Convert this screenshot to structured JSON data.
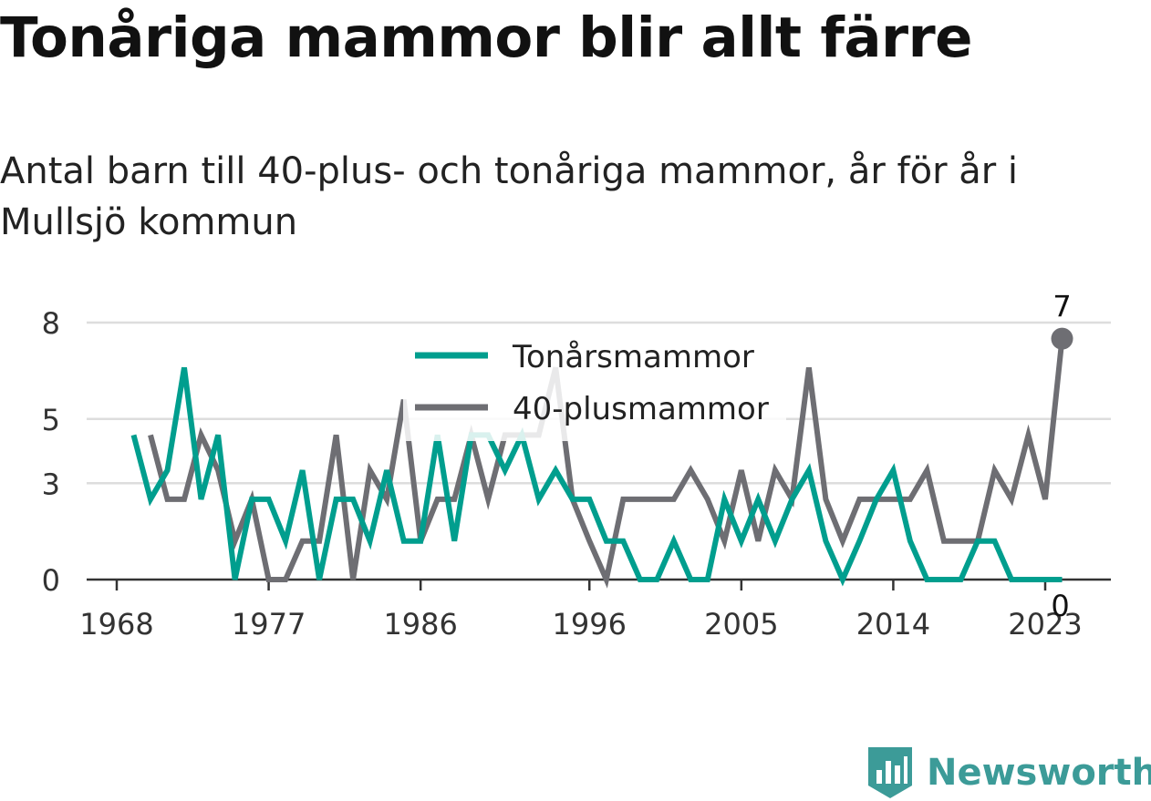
{
  "chart_data": {
    "type": "line",
    "title": "Tonåriga mammor blir allt färre",
    "subtitle": "Antal barn till 40-plus- och tonåriga mammor, år för år i Mullsjö kommun",
    "x_ticks": [
      "1968",
      "1977",
      "1986",
      "1996",
      "2005",
      "2014",
      "2023"
    ],
    "y_ticks": [
      "0",
      "3",
      "5",
      "8"
    ],
    "ylim": [
      0,
      8
    ],
    "grid": true,
    "legend": "top-center",
    "x": [
      1969,
      1970,
      1971,
      1972,
      1973,
      1974,
      1975,
      1976,
      1977,
      1978,
      1979,
      1980,
      1981,
      1982,
      1983,
      1984,
      1985,
      1986,
      1987,
      1988,
      1989,
      1990,
      1991,
      1992,
      1993,
      1994,
      1995,
      1996,
      1997,
      1998,
      1999,
      2000,
      2001,
      2002,
      2003,
      2004,
      2005,
      2006,
      2007,
      2008,
      2009,
      2010,
      2011,
      2012,
      2013,
      2014,
      2015,
      2016,
      2017,
      2018,
      2019,
      2020,
      2021,
      2022,
      2023,
      2024
    ],
    "series": [
      {
        "name": "Tonårsmammor",
        "color": "#009e8e",
        "values": [
          4.5,
          2.5,
          3.4,
          6.6,
          2.5,
          4.5,
          0,
          2.5,
          2.5,
          1.2,
          3.4,
          0,
          2.5,
          2.5,
          1.2,
          3.4,
          1.2,
          1.2,
          4.5,
          1.2,
          4.5,
          4.5,
          3.4,
          4.5,
          2.5,
          3.4,
          2.5,
          2.5,
          1.2,
          1.2,
          0,
          0,
          1.2,
          0,
          0,
          2.5,
          1.2,
          2.5,
          1.2,
          2.5,
          3.4,
          1.2,
          0,
          1.2,
          2.5,
          3.4,
          1.2,
          0,
          0,
          0,
          1.2,
          1.2,
          0,
          0,
          0,
          0
        ]
      },
      {
        "name": "40-plusmammor",
        "color": "#6e6e73",
        "values": [
          null,
          4.5,
          2.5,
          2.5,
          4.5,
          3.4,
          1.2,
          2.5,
          0,
          0,
          1.2,
          1.2,
          4.5,
          0,
          3.4,
          2.5,
          5.6,
          1.2,
          2.5,
          2.5,
          4.5,
          2.5,
          4.5,
          4.5,
          4.5,
          6.6,
          2.5,
          1.2,
          0,
          2.5,
          2.5,
          2.5,
          2.5,
          3.4,
          2.5,
          1.2,
          3.4,
          1.2,
          3.4,
          2.5,
          6.6,
          2.5,
          1.2,
          2.5,
          2.5,
          2.5,
          2.5,
          3.4,
          1.2,
          1.2,
          1.2,
          3.4,
          2.5,
          4.5,
          2.5,
          7.5
        ]
      }
    ],
    "end_labels": {
      "tonar": "0",
      "plus40": "7"
    }
  },
  "brand": {
    "name": "Newsworthy",
    "icon": "bar-chart-badge-icon",
    "color": "#3c9b98"
  }
}
